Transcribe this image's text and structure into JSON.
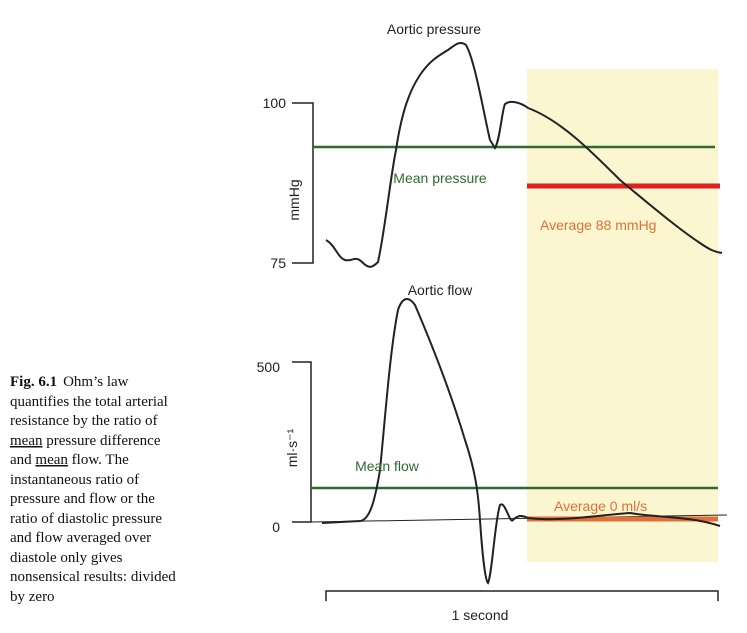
{
  "figure": {
    "top": {
      "title": "Aortic pressure",
      "unit": "mmHg",
      "ticks": [
        "100",
        "75"
      ],
      "mean_label": "Mean pressure",
      "average_label": "Average 88 mmHg"
    },
    "bottom": {
      "title": "Aortic flow",
      "unit": "ml·s⁻¹",
      "ticks": [
        "500",
        "0"
      ],
      "mean_label": "Mean flow",
      "average_label": "Average  0 ml/s"
    },
    "time_label": "1 second"
  },
  "caption": {
    "label": "Fig. 6.1",
    "lines": [
      [
        "Ohm’s law"
      ],
      [
        "quantifies the total arterial"
      ],
      [
        "resistance by the ratio of"
      ],
      [
        "mean",
        " pressure difference"
      ],
      [
        "and ",
        "mean",
        " flow. The"
      ],
      [
        "instantaneous ratio of"
      ],
      [
        "pressure and flow or the"
      ],
      [
        "ratio of diastolic pressure"
      ],
      [
        "and flow averaged over"
      ],
      [
        "diastole only gives"
      ],
      [
        "nonsensical results: divided"
      ],
      [
        "by zero"
      ]
    ]
  }
}
